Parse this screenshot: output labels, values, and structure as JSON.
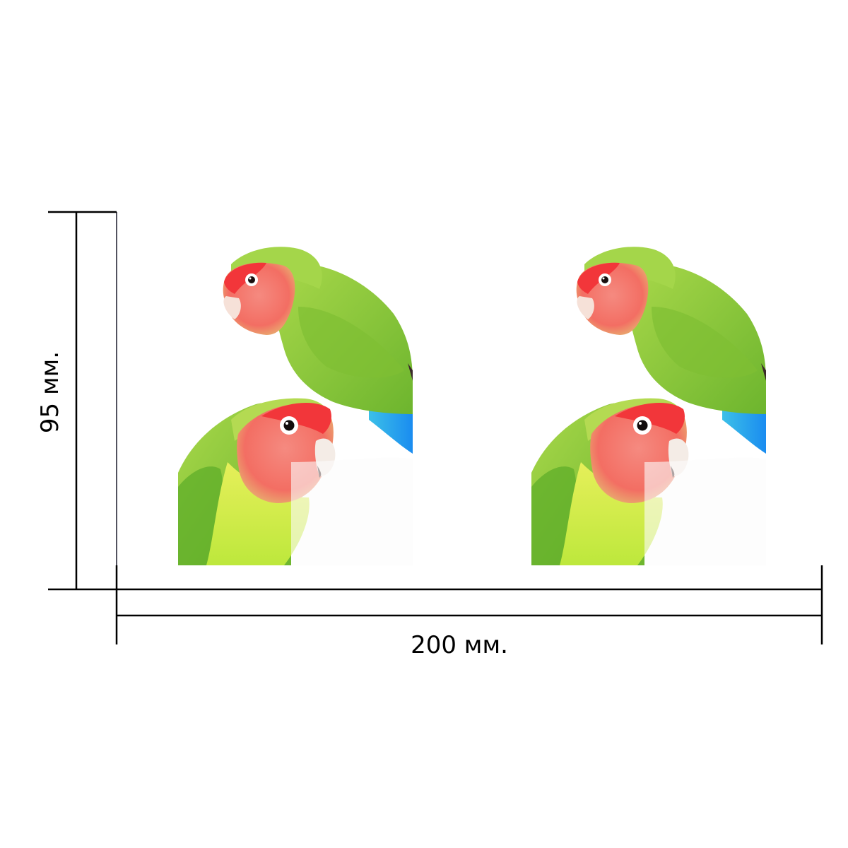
{
  "dimensions": {
    "height_label": "95 мм.",
    "width_label": "200 мм."
  },
  "product": {
    "panels": [
      "left-panel",
      "right-panel"
    ],
    "motif": [
      "lovebird-parrot",
      "lovebird-parrot"
    ]
  },
  "colors": {
    "background": "#ffffff",
    "plumage_green": "#8cc83a",
    "face_red": "#f23a3a",
    "face_pink": "#f48b7e",
    "tail_blue": "#1fa0f0",
    "belly_yellow": "#d9ec4a"
  }
}
